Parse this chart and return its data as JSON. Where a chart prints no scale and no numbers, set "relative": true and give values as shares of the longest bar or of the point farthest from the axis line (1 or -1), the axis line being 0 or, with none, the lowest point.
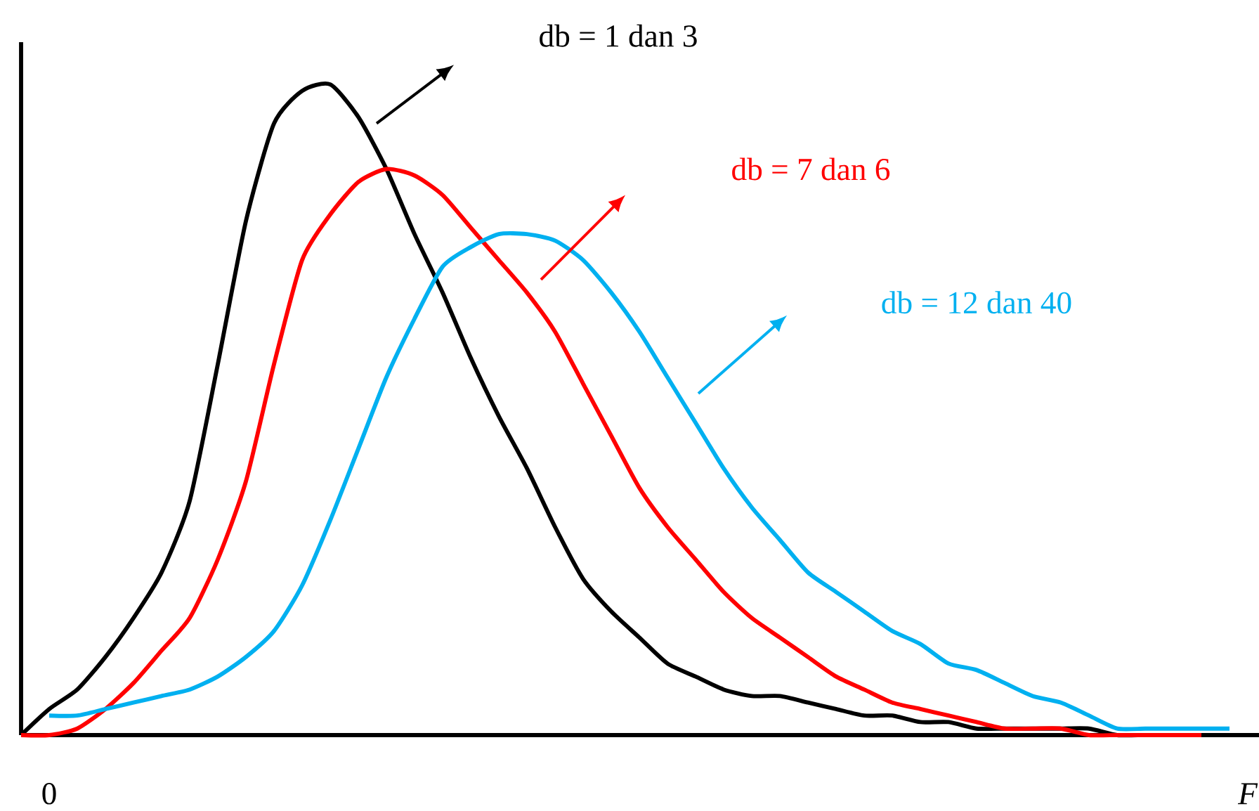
{
  "chart_data": {
    "type": "line",
    "relative": true,
    "tick_labels": false,
    "xlabel": "F",
    "categories": [
      null,
      null,
      null,
      null,
      null,
      null,
      null,
      null,
      null,
      null,
      null,
      null,
      null,
      null,
      null,
      null,
      null,
      null,
      null,
      null,
      null,
      null,
      null,
      null,
      null,
      null,
      null,
      null,
      null,
      null,
      null,
      null,
      null,
      null,
      null,
      null,
      null,
      null,
      null,
      null,
      null,
      null,
      null,
      null
    ],
    "series": [
      {
        "color": "#000000",
        "values": [
          0,
          0.04,
          0.07,
          0.12,
          0.18,
          0.25,
          0.36,
          0.57,
          0.79,
          0.94,
          0.99,
          1.0,
          0.95,
          0.87,
          0.77,
          0.68,
          0.58,
          0.49,
          0.41,
          0.32,
          0.24,
          0.19,
          0.15,
          0.11,
          0.09,
          0.07,
          0.06,
          0.06,
          0.05,
          0.04,
          0.03,
          0.03,
          0.02,
          0.02,
          0.01,
          0.01,
          0.01,
          0.01,
          0.01,
          0,
          0,
          0,
          0,
          null
        ]
      },
      {
        "color": "#ff0000",
        "values": [
          0,
          0,
          0.01,
          0.04,
          0.08,
          0.13,
          0.18,
          0.27,
          0.39,
          0.57,
          0.73,
          0.8,
          0.85,
          0.87,
          0.86,
          0.83,
          0.78,
          0.73,
          0.68,
          0.62,
          0.54,
          0.46,
          0.38,
          0.32,
          0.27,
          0.22,
          0.18,
          0.15,
          0.12,
          0.09,
          0.07,
          0.05,
          0.04,
          0.03,
          0.02,
          0.01,
          0.01,
          0.01,
          0,
          0,
          0,
          0,
          0,
          null
        ]
      },
      {
        "color": "#00b0f0",
        "values": [
          null,
          0.03,
          0.03,
          0.04,
          0.05,
          0.06,
          0.07,
          0.09,
          0.12,
          0.16,
          0.23,
          0.33,
          0.44,
          0.55,
          0.64,
          0.72,
          0.75,
          0.77,
          0.77,
          0.76,
          0.73,
          0.68,
          0.62,
          0.55,
          0.48,
          0.41,
          0.35,
          0.3,
          0.25,
          0.22,
          0.19,
          0.16,
          0.14,
          0.11,
          0.1,
          0.08,
          0.06,
          0.05,
          0.03,
          0.01,
          0.01,
          0.01,
          0.01,
          0.01
        ]
      }
    ],
    "annotations": [
      "db = 1 dan 3",
      "db = 7 dan 6",
      "db = 12 dan 40",
      "0"
    ]
  }
}
